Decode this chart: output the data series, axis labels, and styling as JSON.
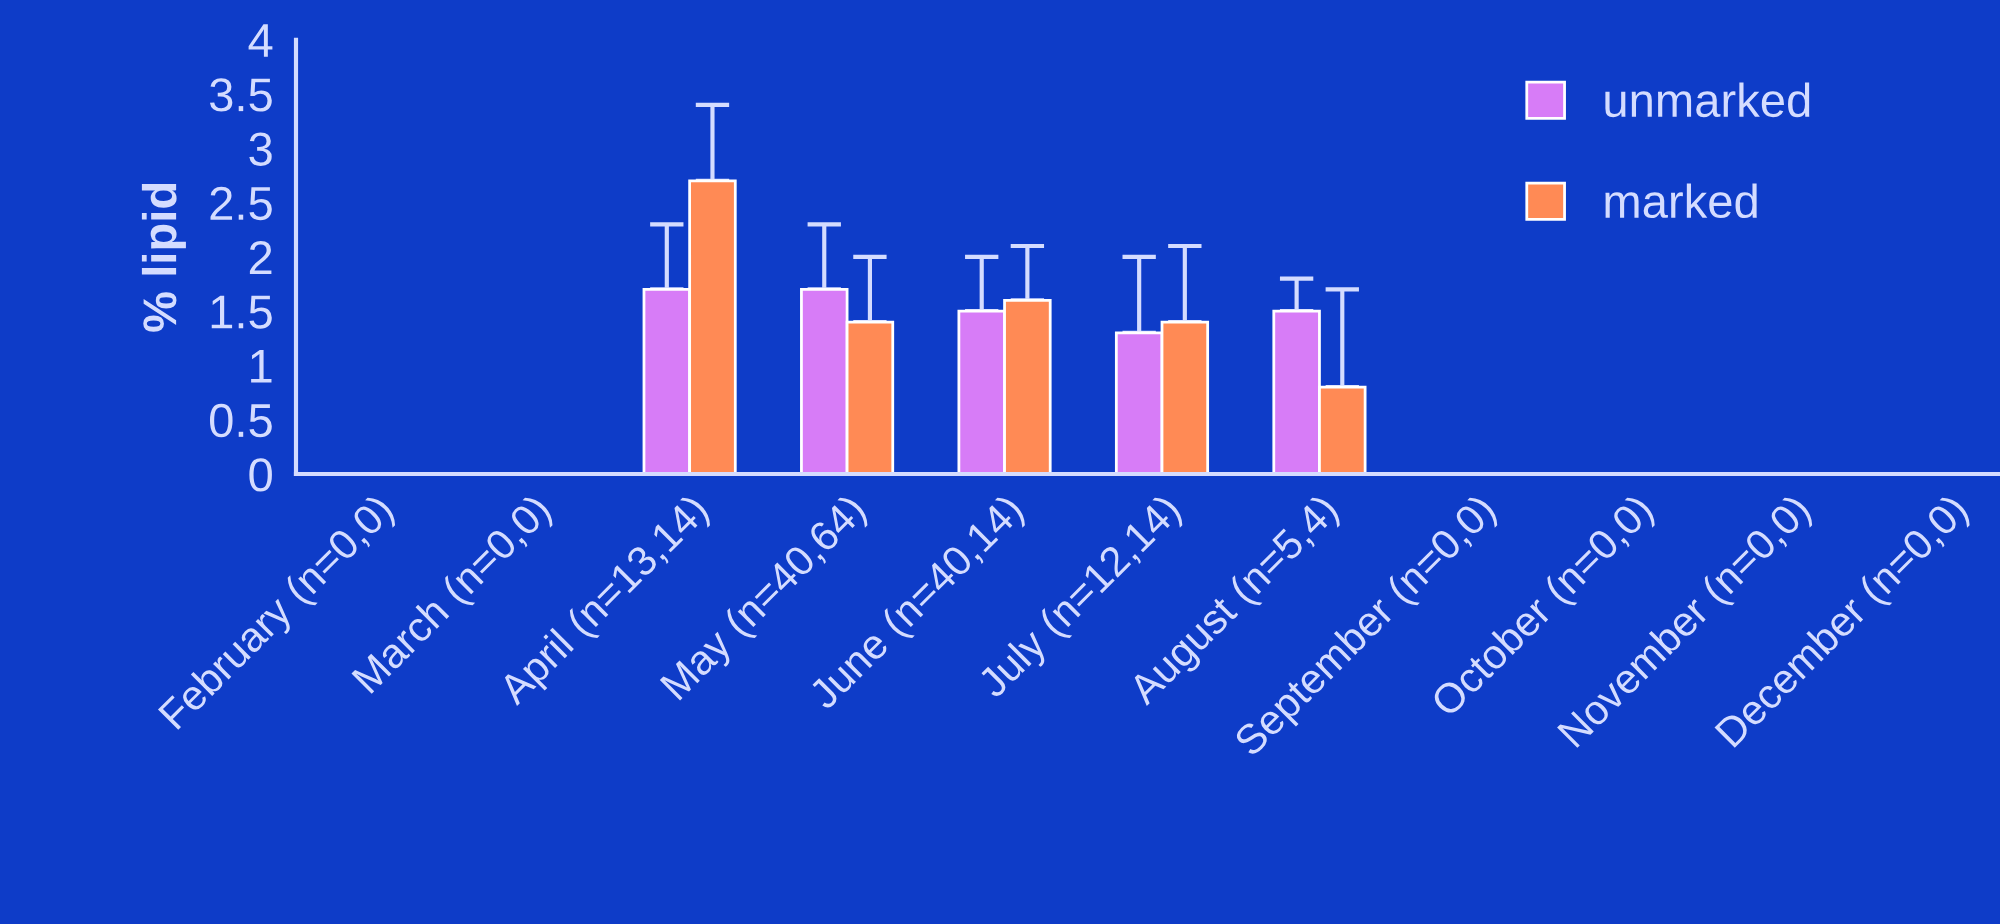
{
  "chart_data": {
    "type": "bar",
    "ylabel": "% lipid",
    "categories": [
      "February (n=0,0)",
      "March (n=0,0)",
      "April (n=13,14)",
      "May (n=40,64)",
      "June (n=40,14)",
      "July (n=12,14)",
      "August (n=5,4)",
      "September (n=0,0)",
      "October (n=0,0)",
      "November (n=0,0)",
      "December (n=0,0)"
    ],
    "series": [
      {
        "name": "unmarked",
        "color": "#d77cf7",
        "values": [
          null,
          null,
          1.7,
          1.7,
          1.5,
          1.3,
          1.5,
          null,
          null,
          null,
          null
        ],
        "errors": [
          null,
          null,
          [
            1.7,
            2.3
          ],
          [
            1.7,
            2.3
          ],
          [
            1.5,
            2.0
          ],
          [
            1.3,
            2.0
          ],
          [
            1.5,
            1.8
          ],
          null,
          null,
          null,
          null
        ]
      },
      {
        "name": "marked",
        "color": "#ff8a55",
        "values": [
          null,
          null,
          2.7,
          1.4,
          1.6,
          1.4,
          0.8,
          null,
          null,
          null,
          null
        ],
        "errors": [
          null,
          null,
          [
            2.7,
            3.4
          ],
          [
            1.4,
            2.0
          ],
          [
            1.6,
            2.1
          ],
          [
            1.4,
            2.1
          ],
          [
            0.8,
            1.7
          ],
          null,
          null,
          null,
          null
        ]
      }
    ],
    "ylim": [
      0,
      4
    ],
    "yticks": [
      0,
      0.5,
      1,
      1.5,
      2,
      2.5,
      3,
      3.5,
      4
    ],
    "grid": false,
    "legend": "top right"
  }
}
